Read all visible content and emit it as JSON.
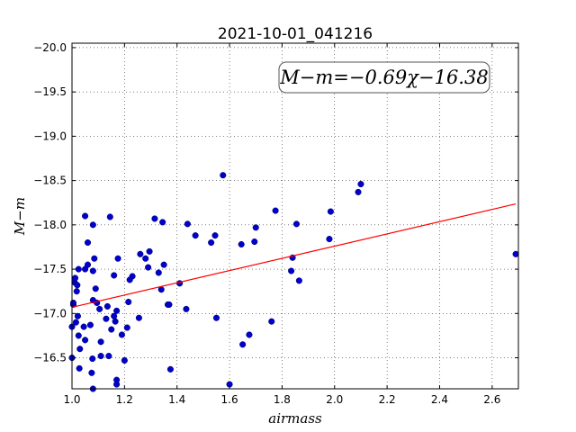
{
  "chart_data": {
    "type": "scatter",
    "title": "2021-10-01_041216",
    "xlabel": "airmass",
    "ylabel": "M−m",
    "annotation": "M−m=−0.69χ−16.38",
    "xlim": [
      1.0,
      2.7
    ],
    "ylim": [
      -20.05,
      -16.15
    ],
    "y_inverted": true,
    "grid": true,
    "xticks": [
      "1.0",
      "1.2",
      "1.4",
      "1.6",
      "1.8",
      "2.0",
      "2.2",
      "2.4",
      "2.6"
    ],
    "yticks": [
      "−16.5",
      "−17.0",
      "−17.5",
      "−18.0",
      "−18.5",
      "−19.0",
      "−19.5",
      "−20.0"
    ],
    "xtick_values": [
      1.0,
      1.2,
      1.4,
      1.6,
      1.8,
      2.0,
      2.2,
      2.4,
      2.6
    ],
    "ytick_values": [
      -16.5,
      -17.0,
      -17.5,
      -18.0,
      -18.5,
      -19.0,
      -19.5,
      -20.0
    ],
    "fit": {
      "slope": -0.69,
      "intercept": -16.38,
      "color": "#ff0000"
    },
    "point_color": "#0000cc",
    "points": [
      [
        1.0,
        -16.5
      ],
      [
        1.0,
        -16.85
      ],
      [
        1.005,
        -17.1
      ],
      [
        1.005,
        -17.12
      ],
      [
        1.01,
        -17.35
      ],
      [
        1.012,
        -17.4
      ],
      [
        1.015,
        -16.9
      ],
      [
        1.018,
        -17.25
      ],
      [
        1.02,
        -17.32
      ],
      [
        1.022,
        -16.97
      ],
      [
        1.025,
        -17.5
      ],
      [
        1.025,
        -16.75
      ],
      [
        1.028,
        -16.38
      ],
      [
        1.03,
        -16.6
      ],
      [
        1.045,
        -16.85
      ],
      [
        1.05,
        -17.5
      ],
      [
        1.05,
        -16.7
      ],
      [
        1.05,
        -18.1
      ],
      [
        1.06,
        -17.55
      ],
      [
        1.06,
        -17.8
      ],
      [
        1.07,
        -16.87
      ],
      [
        1.075,
        -16.33
      ],
      [
        1.078,
        -16.49
      ],
      [
        1.08,
        -17.15
      ],
      [
        1.08,
        -17.48
      ],
      [
        1.08,
        -18.0
      ],
      [
        1.08,
        -16.15
      ],
      [
        1.085,
        -17.62
      ],
      [
        1.09,
        -17.28
      ],
      [
        1.095,
        -17.12
      ],
      [
        1.105,
        -17.05
      ],
      [
        1.11,
        -16.52
      ],
      [
        1.11,
        -16.68
      ],
      [
        1.13,
        -16.94
      ],
      [
        1.135,
        -17.08
      ],
      [
        1.14,
        -16.52
      ],
      [
        1.145,
        -18.09
      ],
      [
        1.15,
        -16.82
      ],
      [
        1.16,
        -16.97
      ],
      [
        1.16,
        -17.43
      ],
      [
        1.165,
        -16.91
      ],
      [
        1.17,
        -16.25
      ],
      [
        1.17,
        -16.2
      ],
      [
        1.17,
        -17.03
      ],
      [
        1.175,
        -17.62
      ],
      [
        1.19,
        -16.76
      ],
      [
        1.2,
        -16.47
      ],
      [
        1.21,
        -16.84
      ],
      [
        1.215,
        -17.13
      ],
      [
        1.22,
        -17.38
      ],
      [
        1.23,
        -17.42
      ],
      [
        1.255,
        -16.95
      ],
      [
        1.26,
        -17.67
      ],
      [
        1.28,
        -17.62
      ],
      [
        1.29,
        -17.52
      ],
      [
        1.295,
        -17.7
      ],
      [
        1.315,
        -18.07
      ],
      [
        1.33,
        -17.46
      ],
      [
        1.34,
        -17.27
      ],
      [
        1.345,
        -18.03
      ],
      [
        1.35,
        -17.55
      ],
      [
        1.365,
        -17.1
      ],
      [
        1.37,
        -17.1
      ],
      [
        1.375,
        -16.37
      ],
      [
        1.41,
        -17.34
      ],
      [
        1.435,
        -17.05
      ],
      [
        1.44,
        -18.01
      ],
      [
        1.47,
        -17.88
      ],
      [
        1.53,
        -17.8
      ],
      [
        1.545,
        -17.88
      ],
      [
        1.55,
        -16.95
      ],
      [
        1.575,
        -18.56
      ],
      [
        1.6,
        -16.2
      ],
      [
        1.645,
        -17.78
      ],
      [
        1.65,
        -16.65
      ],
      [
        1.675,
        -16.76
      ],
      [
        1.695,
        -17.81
      ],
      [
        1.7,
        -17.97
      ],
      [
        1.76,
        -16.91
      ],
      [
        1.775,
        -18.16
      ],
      [
        1.835,
        -17.48
      ],
      [
        1.84,
        -17.63
      ],
      [
        1.855,
        -18.01
      ],
      [
        1.865,
        -17.37
      ],
      [
        1.98,
        -17.84
      ],
      [
        1.985,
        -18.15
      ],
      [
        2.09,
        -18.37
      ],
      [
        2.1,
        -18.46
      ],
      [
        2.69,
        -17.67
      ]
    ]
  }
}
